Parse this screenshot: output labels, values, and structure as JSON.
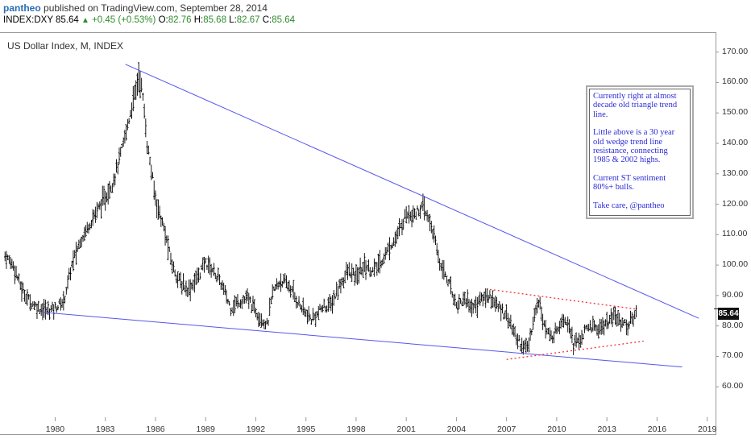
{
  "header": {
    "user": "pantheo",
    "published": "published on TradingView.com, September 28, 2014",
    "symbol": "INDEX:DXY",
    "last": "85.64",
    "change": "+0.45 (+0.53%)",
    "o_label": "O:",
    "o_value": "82.76",
    "h_label": "H:",
    "h_value": "85.68",
    "l_label": "L:",
    "l_value": "82.67",
    "c_label": "C:",
    "c_value": "85.64"
  },
  "note": {
    "paragraphs": [
      "Currently right at almost decade old triangle trend line.",
      "Little above is a 30 year old wedge trend line resistance, connecting 1985 & 2002 highs.",
      "Current ST sentiment 80%+ bulls.",
      "Take care, @pantheo"
    ],
    "color": "#2b2bd6"
  },
  "price_tag": "85.64",
  "chart_data": {
    "type": "bar",
    "title": "US Dollar Index, M, INDEX",
    "x_tick_labels": [
      "1980",
      "1983",
      "1986",
      "1989",
      "1992",
      "1995",
      "1998",
      "2001",
      "2004",
      "2007",
      "2010",
      "2013",
      "2016",
      "2019"
    ],
    "y_tick_labels": [
      "60.00",
      "70.00",
      "80.00",
      "90.00",
      "100.00",
      "110.00",
      "120.00",
      "130.00",
      "140.00",
      "150.00",
      "160.00",
      "170.00"
    ],
    "xlim": [
      1976.7,
      2019.5
    ],
    "ylim": [
      50,
      176
    ],
    "series": [
      {
        "x": [
          1977.0,
          1977.5,
          1978.0,
          1978.5,
          1979.0,
          1979.5,
          1980.0,
          1980.5,
          1981.0,
          1981.5,
          1982.0,
          1982.5,
          1983.0,
          1983.5,
          1984.0,
          1984.5,
          1985.0,
          1985.2,
          1985.5,
          1986.0,
          1986.5,
          1987.0,
          1987.5,
          1988.0,
          1988.5,
          1989.0,
          1989.5,
          1990.0,
          1990.5,
          1991.0,
          1991.5,
          1992.0,
          1992.7,
          1993.0,
          1993.5,
          1994.0,
          1994.5,
          1995.0,
          1995.3,
          1995.7,
          1996.0,
          1996.5,
          1997.0,
          1997.5,
          1998.0,
          1998.5,
          1999.0,
          1999.5,
          2000.0,
          2000.5,
          2001.0,
          2001.5,
          2002.0,
          2002.5,
          2003.0,
          2003.5,
          2004.0,
          2004.5,
          2005.0,
          2005.5,
          2006.0,
          2006.5,
          2007.0,
          2007.5,
          2008.0,
          2008.3,
          2008.7,
          2009.0,
          2009.3,
          2009.7,
          2010.0,
          2010.4,
          2010.8,
          2011.0,
          2011.3,
          2011.7,
          2012.0,
          2012.5,
          2013.0,
          2013.5,
          2014.0,
          2014.3,
          2014.6,
          2014.8
        ],
        "y": [
          103,
          100,
          92,
          88,
          86,
          85,
          86,
          88,
          100,
          108,
          113,
          118,
          122,
          128,
          138,
          150,
          162,
          158,
          140,
          122,
          112,
          100,
          94,
          92,
          96,
          101,
          98,
          93,
          86,
          88,
          89,
          85,
          80,
          91,
          95,
          93,
          88,
          84,
          82,
          84,
          86,
          87,
          93,
          98,
          96,
          100,
          98,
          101,
          106,
          110,
          117,
          117,
          119,
          113,
          101,
          95,
          87,
          89,
          86,
          89,
          90,
          86,
          84,
          77,
          73,
          73,
          85,
          88,
          79,
          76,
          79,
          83,
          80,
          74,
          75,
          78,
          80,
          79,
          81,
          83,
          81,
          80,
          83,
          85.64
        ],
        "color": "#000000"
      }
    ],
    "trend_lines": [
      {
        "name": "",
        "x": [
          1984.2,
          2018.5
        ],
        "y": [
          166,
          82.5
        ],
        "color": "#5555ee",
        "style": "solid"
      },
      {
        "name": "",
        "x": [
          1979.2,
          2017.5
        ],
        "y": [
          84.5,
          66.5
        ],
        "color": "#5555ee",
        "style": "solid"
      },
      {
        "name": "",
        "x": [
          2006.0,
          2014.8
        ],
        "y": [
          92,
          85.5
        ],
        "color": "#ee3333",
        "style": "dotted"
      },
      {
        "name": "",
        "x": [
          2007.0,
          2015.2
        ],
        "y": [
          69,
          75
        ],
        "color": "#ee3333",
        "style": "dotted"
      }
    ],
    "grid": false,
    "legend": "none"
  }
}
